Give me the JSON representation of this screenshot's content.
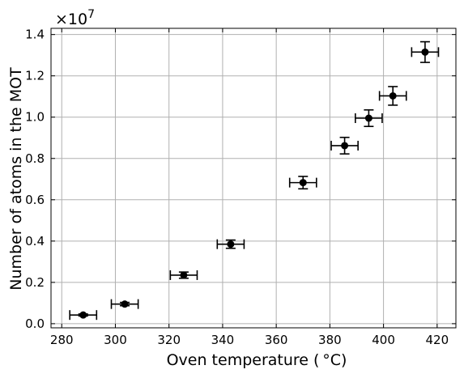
{
  "chart_data": {
    "type": "scatter",
    "xlabel": "Oven temperature ( °C)",
    "ylabel": "Number of atoms in the MOT",
    "y_offset_text": "×10",
    "y_offset_exponent": "7",
    "xlim": [
      276,
      427
    ],
    "ylim": [
      -0.02,
      1.43
    ],
    "x_ticks": [
      280,
      300,
      320,
      340,
      360,
      380,
      400,
      420
    ],
    "y_ticks": [
      0.0,
      0.2,
      0.4,
      0.6,
      0.8,
      1.0,
      1.2,
      1.4
    ],
    "x_tick_labels": [
      "280",
      "300",
      "320",
      "340",
      "360",
      "380",
      "400",
      "420"
    ],
    "y_tick_labels": [
      "0.0",
      "0.2",
      "0.4",
      "0.6",
      "0.8",
      "1.0",
      "1.2",
      "1.4"
    ],
    "grid": true,
    "marker_color": "#000000",
    "points": [
      {
        "x": 288,
        "y": 0.042,
        "xerr": 5,
        "yerr": 0.005
      },
      {
        "x": 303.5,
        "y": 0.095,
        "xerr": 5,
        "yerr": 0.008
      },
      {
        "x": 325.5,
        "y": 0.235,
        "xerr": 5,
        "yerr": 0.015
      },
      {
        "x": 343,
        "y": 0.385,
        "xerr": 5,
        "yerr": 0.02
      },
      {
        "x": 370,
        "y": 0.683,
        "xerr": 5,
        "yerr": 0.03
      },
      {
        "x": 385.5,
        "y": 0.862,
        "xerr": 5,
        "yerr": 0.04
      },
      {
        "x": 394.5,
        "y": 0.995,
        "xerr": 5,
        "yerr": 0.04
      },
      {
        "x": 403.5,
        "y": 1.103,
        "xerr": 5,
        "yerr": 0.045
      },
      {
        "x": 415.5,
        "y": 1.315,
        "xerr": 5,
        "yerr": 0.05
      }
    ]
  }
}
